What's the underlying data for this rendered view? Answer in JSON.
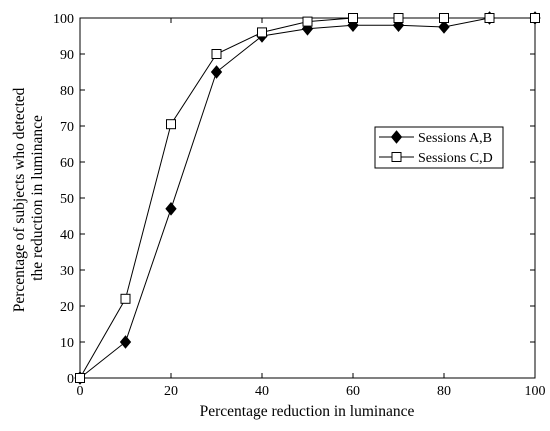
{
  "chart_data": {
    "type": "line",
    "title": "",
    "xlabel": "Percentage reduction in luminance",
    "ylabel_lines": [
      "Percentage of subjects who detected",
      "the reduction in luminance"
    ],
    "xlim": [
      0,
      100
    ],
    "ylim": [
      0,
      100
    ],
    "xticks": [
      0,
      20,
      40,
      60,
      80,
      100
    ],
    "yticks": [
      0,
      10,
      20,
      30,
      40,
      50,
      60,
      70,
      80,
      90,
      100
    ],
    "grid": false,
    "legend_position": "right",
    "x": [
      0,
      10,
      20,
      30,
      40,
      50,
      60,
      70,
      80,
      90,
      100
    ],
    "series": [
      {
        "name": "Sessions A,B",
        "marker": "diamond-filled",
        "color": "#000000",
        "values": [
          0,
          10,
          47,
          85,
          95,
          97,
          98,
          98,
          97.5,
          100,
          100
        ]
      },
      {
        "name": "Sessions C,D",
        "marker": "square-open",
        "color": "#000000",
        "values": [
          0,
          22,
          70.5,
          90,
          96,
          99,
          100,
          100,
          100,
          100,
          100
        ]
      }
    ]
  }
}
